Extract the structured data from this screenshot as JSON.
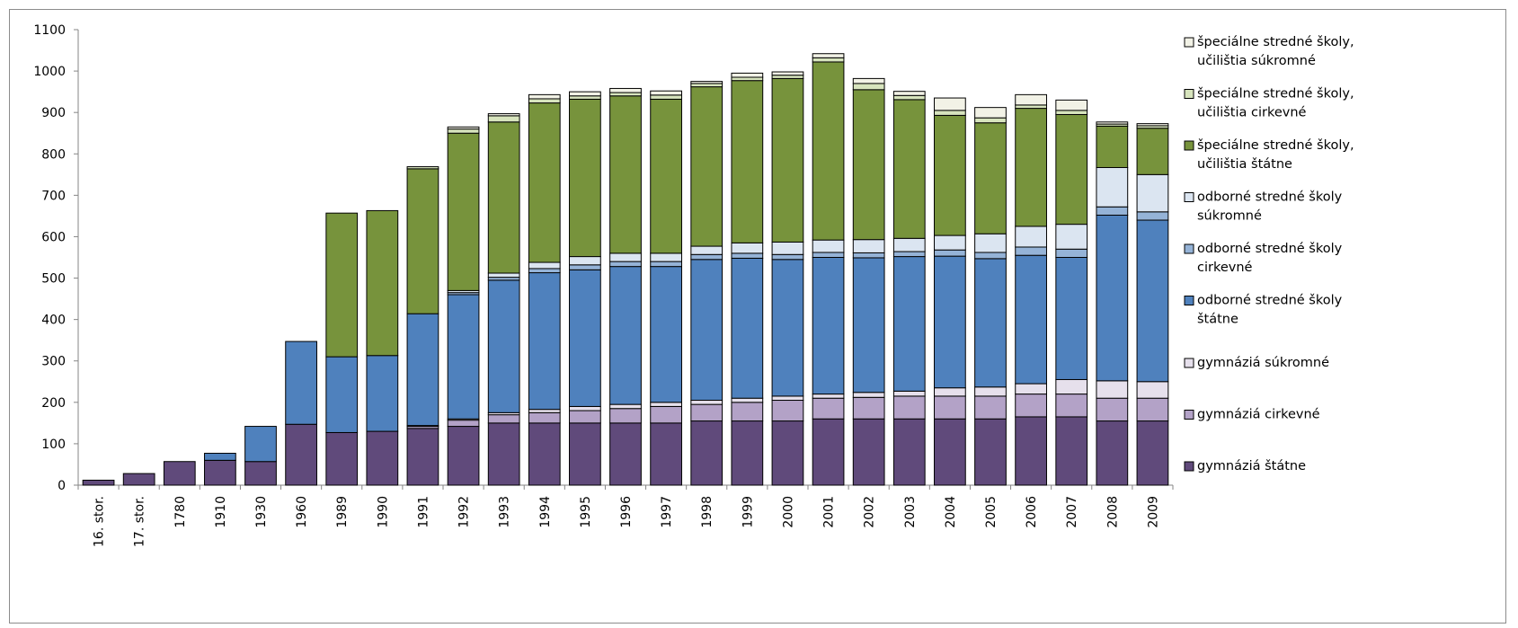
{
  "chart_data": {
    "type": "bar",
    "stacked": true,
    "categories": [
      "16. stor.",
      "17. stor.",
      "1780",
      "1910",
      "1930",
      "1960",
      "1989",
      "1990",
      "1991",
      "1992",
      "1993",
      "1994",
      "1995",
      "1996",
      "1997",
      "1998",
      "1999",
      "2000",
      "2001",
      "2002",
      "2003",
      "2004",
      "2005",
      "2006",
      "2007",
      "2008",
      "2009"
    ],
    "ylim": [
      0,
      1100
    ],
    "yticks": [
      0,
      100,
      200,
      300,
      400,
      500,
      600,
      700,
      800,
      900,
      1000,
      1100
    ],
    "grid": false,
    "legend_position": "right",
    "series": [
      {
        "name": "gymnáziá štátne",
        "color": "#604a7b",
        "values": [
          12,
          28,
          57,
          60,
          57,
          147,
          127,
          130,
          137,
          142,
          150,
          150,
          150,
          150,
          150,
          155,
          155,
          155,
          160,
          160,
          160,
          160,
          160,
          165,
          165,
          155,
          155
        ]
      },
      {
        "name": "gymnáziá cirkevné",
        "color": "#b3a2c7",
        "values": [
          0,
          0,
          0,
          0,
          0,
          0,
          0,
          0,
          5,
          15,
          20,
          25,
          30,
          35,
          40,
          40,
          45,
          50,
          50,
          52,
          55,
          55,
          55,
          55,
          55,
          55,
          55
        ]
      },
      {
        "name": "gymnáziá súkromné",
        "color": "#e6e0ec",
        "values": [
          0,
          0,
          0,
          0,
          0,
          0,
          0,
          0,
          2,
          3,
          5,
          8,
          10,
          10,
          10,
          10,
          10,
          10,
          10,
          12,
          12,
          20,
          22,
          25,
          35,
          42,
          40
        ]
      },
      {
        "name": "odborné stredné školy štátne",
        "color": "#4f81bd",
        "values": [
          0,
          0,
          0,
          17,
          85,
          200,
          183,
          183,
          270,
          300,
          320,
          330,
          330,
          333,
          328,
          340,
          338,
          330,
          330,
          325,
          325,
          318,
          310,
          310,
          295,
          400,
          390
        ]
      },
      {
        "name": "odborné stredné školy cirkevné",
        "color": "#95b3d7",
        "values": [
          0,
          0,
          0,
          0,
          0,
          0,
          0,
          0,
          0,
          5,
          7,
          10,
          12,
          12,
          12,
          12,
          12,
          12,
          12,
          12,
          12,
          15,
          15,
          20,
          20,
          20,
          20
        ]
      },
      {
        "name": "odborné stredné školy súkromné",
        "color": "#dbe5f1",
        "values": [
          0,
          0,
          0,
          0,
          0,
          0,
          0,
          0,
          0,
          5,
          10,
          15,
          20,
          20,
          20,
          20,
          25,
          30,
          30,
          32,
          32,
          35,
          45,
          50,
          60,
          95,
          90
        ]
      },
      {
        "name": "špeciálne stredné školy, učilištia štátne",
        "color": "#77933c",
        "values": [
          0,
          0,
          0,
          0,
          0,
          0,
          347,
          350,
          350,
          380,
          365,
          385,
          380,
          380,
          372,
          385,
          392,
          395,
          430,
          362,
          335,
          290,
          268,
          285,
          265,
          100,
          112
        ]
      },
      {
        "name": "špeciálne stredné školy, učilištia cirkevné",
        "color": "#d7e4bd",
        "values": [
          0,
          0,
          0,
          0,
          0,
          0,
          0,
          0,
          5,
          10,
          15,
          10,
          8,
          8,
          10,
          8,
          8,
          8,
          10,
          15,
          10,
          12,
          12,
          8,
          10,
          5,
          6
        ]
      },
      {
        "name": "špeciálne stredné školy, učilištia súkromné",
        "color": "#f2f2e6",
        "values": [
          0,
          0,
          0,
          0,
          0,
          0,
          0,
          0,
          0,
          5,
          5,
          10,
          10,
          10,
          10,
          5,
          10,
          8,
          10,
          12,
          10,
          30,
          25,
          25,
          25,
          5,
          5
        ]
      }
    ]
  }
}
